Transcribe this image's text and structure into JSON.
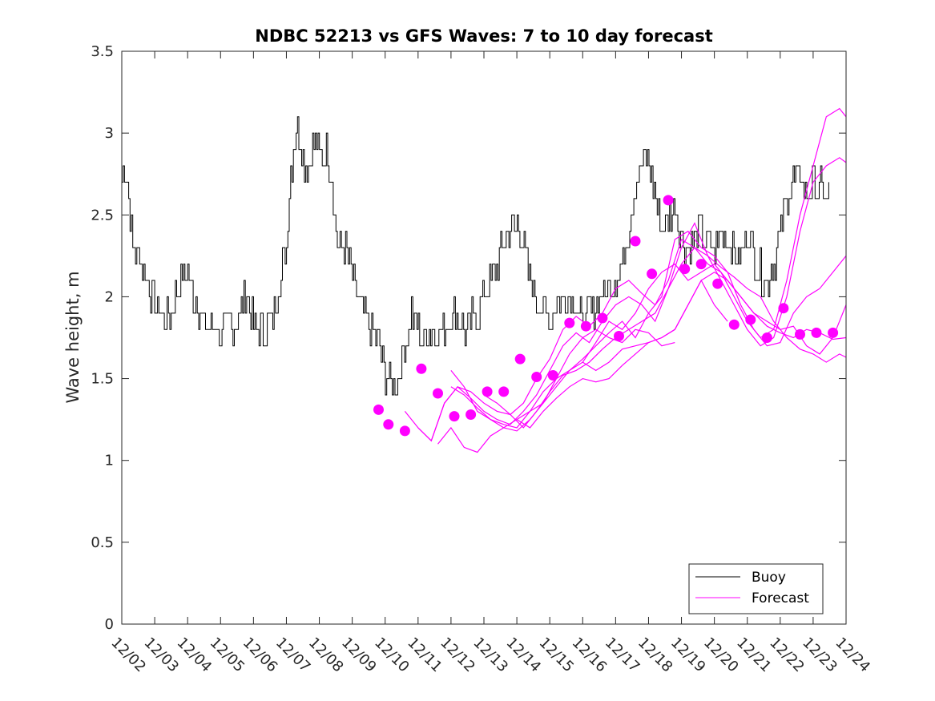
{
  "chart_data": {
    "type": "line",
    "title": "NDBC 52213 vs GFS Waves: 7 to 10 day forecast",
    "xlabel": "",
    "ylabel": "Wave height, m",
    "x_range_days": [
      0,
      22
    ],
    "ylim": [
      0,
      3.5
    ],
    "y_ticks": [
      0,
      0.5,
      1,
      1.5,
      2,
      2.5,
      3,
      3.5
    ],
    "y_tick_labels": [
      "0",
      "0.5",
      "1",
      "1.5",
      "2",
      "2.5",
      "3",
      "3.5"
    ],
    "x_ticks": [
      0,
      1,
      2,
      3,
      4,
      5,
      6,
      7,
      8,
      9,
      10,
      11,
      12,
      13,
      14,
      15,
      16,
      17,
      18,
      19,
      20,
      21,
      22
    ],
    "x_tick_labels": [
      "12/02",
      "12/03",
      "12/04",
      "12/05",
      "12/06",
      "12/07",
      "12/08",
      "12/09",
      "12/10",
      "12/11",
      "12/12",
      "12/13",
      "12/14",
      "12/15",
      "12/16",
      "12/17",
      "12/18",
      "12/19",
      "12/20",
      "12/21",
      "12/22",
      "12/23",
      "12/24"
    ],
    "grid": false,
    "legend": {
      "location": "bottom-right",
      "entries": [
        {
          "label": "Buoy",
          "color": "#000000"
        },
        {
          "label": "Forecast",
          "color": "#ff00ff"
        }
      ]
    },
    "colors": {
      "buoy": "#000000",
      "forecast": "#ff00ff"
    },
    "series": [
      {
        "name": "Buoy",
        "x": [
          0,
          0.1,
          0.2,
          0.3,
          0.4,
          0.5,
          0.6,
          0.75,
          0.9,
          1.0,
          1.2,
          1.4,
          1.6,
          1.8,
          2.0,
          2.2,
          2.4,
          2.6,
          2.8,
          3.0,
          3.2,
          3.4,
          3.6,
          3.8,
          4.0,
          4.2,
          4.4,
          4.6,
          4.8,
          4.9,
          5.0,
          5.1,
          5.2,
          5.35,
          5.5,
          5.65,
          5.8,
          5.95,
          6.1,
          6.25,
          6.4,
          6.5,
          6.6,
          6.8,
          7.0,
          7.2,
          7.4,
          7.6,
          7.8,
          8.0,
          8.2,
          8.4,
          8.6,
          8.8,
          9.0,
          9.2,
          9.4,
          9.6,
          9.8,
          10.0,
          10.2,
          10.4,
          10.6,
          10.8,
          11.0,
          11.2,
          11.4,
          11.6,
          11.8,
          12.0,
          12.2,
          12.4,
          12.6,
          12.8,
          13.0,
          13.2,
          13.4,
          13.6,
          13.8,
          14.0,
          14.2,
          14.4,
          14.6,
          14.8,
          15.0,
          15.2,
          15.4,
          15.6,
          15.8,
          16.0,
          16.2,
          16.4,
          16.6,
          16.8,
          17.0,
          17.2,
          17.4,
          17.6,
          17.8,
          18.0,
          18.2,
          18.4,
          18.6,
          18.8,
          19.0,
          19.2,
          19.4,
          19.6,
          19.8,
          20.0,
          20.2,
          20.4,
          20.6,
          20.8,
          21.0,
          21.2,
          21.4,
          21.5
        ],
        "values": [
          2.7,
          2.8,
          2.6,
          2.35,
          2.25,
          2.3,
          2.2,
          2.1,
          2.0,
          1.95,
          1.9,
          1.85,
          2.0,
          2.1,
          2.15,
          2.0,
          1.9,
          1.8,
          1.85,
          1.75,
          1.8,
          1.85,
          1.9,
          2.0,
          1.85,
          1.8,
          1.8,
          1.85,
          2.1,
          2.2,
          2.3,
          2.7,
          2.9,
          3.05,
          2.85,
          2.8,
          2.95,
          2.9,
          2.85,
          2.9,
          2.7,
          2.4,
          2.3,
          2.3,
          2.1,
          1.95,
          1.85,
          1.8,
          1.7,
          1.55,
          1.45,
          1.5,
          1.7,
          1.9,
          1.8,
          1.75,
          1.8,
          1.75,
          1.8,
          1.9,
          1.85,
          1.8,
          1.85,
          1.9,
          2.0,
          2.1,
          2.2,
          2.3,
          2.4,
          2.45,
          2.3,
          2.1,
          2.0,
          1.9,
          1.85,
          1.95,
          2.0,
          2.05,
          1.95,
          1.85,
          1.9,
          1.95,
          2.0,
          2.05,
          2.1,
          2.2,
          2.4,
          2.65,
          2.8,
          2.85,
          2.6,
          2.4,
          2.5,
          2.55,
          2.4,
          2.3,
          2.35,
          2.4,
          2.35,
          2.25,
          2.4,
          2.35,
          2.3,
          2.2,
          2.4,
          2.25,
          2.15,
          2.1,
          2.2,
          2.4,
          2.6,
          2.7,
          2.75,
          2.65,
          2.7,
          2.65,
          2.6,
          2.6
        ]
      },
      {
        "name": "Forecast",
        "lines": [
          {
            "x": [
              8.6,
              9.0,
              9.4,
              9.8,
              10.2,
              10.6,
              11.0,
              11.4,
              11.8,
              12.2,
              12.6,
              13.0,
              13.4,
              13.8,
              14.2,
              14.6,
              15.0,
              15.4,
              15.8,
              16.2,
              16.6,
              17.0,
              17.4,
              17.8,
              18.2,
              18.6,
              19.0,
              19.4,
              19.8,
              20.2,
              20.6,
              21.0,
              21.4,
              21.8,
              22.0
            ],
            "values": [
              1.3,
              1.2,
              1.12,
              1.35,
              1.45,
              1.42,
              1.35,
              1.3,
              1.28,
              1.35,
              1.5,
              1.62,
              1.8,
              1.88,
              1.82,
              1.9,
              2.05,
              2.1,
              2.02,
              1.95,
              2.1,
              2.35,
              2.3,
              2.2,
              2.15,
              2.0,
              1.85,
              1.75,
              1.8,
              2.1,
              2.5,
              2.8,
              3.1,
              3.15,
              3.1
            ]
          },
          {
            "x": [
              9.0,
              9.4,
              9.8,
              10.2,
              10.6,
              11.0,
              11.4,
              11.8,
              12.2,
              12.6,
              13.0,
              13.4,
              13.8,
              14.2,
              14.6,
              15.0,
              15.4,
              15.8,
              16.2,
              16.6,
              17.0,
              17.4,
              17.8,
              18.2,
              18.6,
              19.0,
              19.4,
              19.8,
              20.2,
              20.6,
              21.0,
              21.4,
              21.8,
              22.0
            ],
            "values": [
              1.2,
              1.12,
              1.35,
              1.45,
              1.38,
              1.3,
              1.25,
              1.22,
              1.3,
              1.4,
              1.55,
              1.7,
              1.78,
              1.72,
              1.85,
              1.95,
              2.0,
              1.95,
              1.85,
              2.05,
              2.3,
              2.45,
              2.25,
              2.1,
              1.95,
              1.8,
              1.7,
              1.75,
              2.0,
              2.4,
              2.7,
              2.8,
              2.85,
              2.82
            ]
          },
          {
            "x": [
              9.6,
              10.0,
              10.4,
              10.8,
              11.2,
              11.6,
              12.0,
              12.4,
              12.8,
              13.2,
              13.6,
              14.0,
              14.4,
              14.8,
              15.2,
              15.6,
              16.0,
              16.4,
              16.8,
              17.2,
              17.6,
              18.0,
              18.4,
              18.8,
              19.2,
              19.6,
              20.0,
              20.4,
              20.8,
              21.2,
              21.6,
              22.0
            ],
            "values": [
              1.1,
              1.2,
              1.08,
              1.05,
              1.15,
              1.2,
              1.25,
              1.3,
              1.35,
              1.45,
              1.55,
              1.62,
              1.7,
              1.78,
              1.85,
              1.75,
              1.9,
              2.0,
              2.35,
              2.4,
              2.3,
              2.25,
              2.15,
              1.95,
              1.8,
              1.7,
              1.72,
              1.9,
              2.0,
              2.05,
              2.15,
              2.25
            ]
          },
          {
            "x": [
              10.0,
              10.4,
              10.8,
              11.2,
              11.6,
              12.0,
              12.4,
              12.8,
              13.2,
              13.6,
              14.0,
              14.4,
              14.8,
              15.2,
              15.6,
              16.0,
              16.4,
              16.8,
              17.2,
              17.6,
              18.0,
              18.4,
              18.8,
              19.2,
              19.6,
              20.0,
              20.4,
              20.8,
              21.2,
              21.6,
              22.0
            ],
            "values": [
              1.45,
              1.4,
              1.32,
              1.25,
              1.22,
              1.2,
              1.3,
              1.42,
              1.5,
              1.55,
              1.6,
              1.72,
              1.85,
              1.8,
              1.9,
              2.05,
              2.15,
              2.2,
              2.1,
              2.15,
              2.2,
              2.1,
              2.0,
              1.9,
              1.85,
              1.8,
              1.82,
              1.7,
              1.65,
              1.75,
              1.95
            ]
          },
          {
            "x": [
              11.0,
              11.4,
              11.8,
              12.2,
              12.6,
              13.0,
              13.4,
              13.8,
              14.2,
              14.6,
              15.0,
              15.4,
              15.8,
              16.2,
              16.6,
              17.0,
              17.4,
              17.8,
              18.2,
              18.6,
              19.0,
              19.4,
              19.8,
              20.2,
              20.6,
              21.0,
              21.4,
              21.8,
              22.0
            ],
            "values": [
              1.4,
              1.35,
              1.28,
              1.2,
              1.3,
              1.42,
              1.52,
              1.55,
              1.6,
              1.68,
              1.75,
              1.8,
              1.85,
              1.9,
              2.05,
              2.2,
              2.3,
              2.25,
              2.18,
              2.12,
              2.05,
              2.0,
              1.85,
              1.75,
              1.68,
              1.65,
              1.6,
              1.65,
              1.63
            ]
          },
          {
            "x": [
              12.0,
              12.4,
              12.8,
              13.2,
              13.6,
              14.0,
              14.4,
              14.8,
              15.2,
              15.6,
              16.0,
              16.4,
              16.8,
              17.2,
              17.6,
              18.0,
              18.4,
              18.8,
              19.2,
              19.6,
              20.0,
              20.4,
              20.8,
              21.2,
              21.6,
              22.0
            ],
            "values": [
              1.25,
              1.2,
              1.3,
              1.38,
              1.45,
              1.5,
              1.48,
              1.5,
              1.58,
              1.65,
              1.72,
              1.75,
              1.8,
              1.95,
              2.1,
              2.15,
              2.1,
              2.0,
              1.9,
              1.82,
              1.78,
              1.75,
              1.8,
              1.78,
              1.74,
              1.75
            ]
          },
          {
            "x": [
              14.0,
              14.4,
              14.8,
              15.2,
              15.6,
              16.0,
              16.4,
              16.8,
              17.2,
              17.6,
              18.0,
              18.4
            ],
            "values": [
              1.6,
              1.55,
              1.6,
              1.68,
              1.7,
              1.72,
              1.75,
              1.8,
              1.95,
              2.1,
              1.95,
              1.85
            ]
          },
          {
            "x": [
              10.0,
              10.4,
              10.8,
              11.2,
              11.6,
              12.0,
              12.4,
              12.8,
              13.2,
              13.6,
              14.0,
              14.4,
              14.8,
              15.2,
              15.6,
              16.0,
              16.4,
              16.8
            ],
            "values": [
              1.55,
              1.45,
              1.3,
              1.25,
              1.2,
              1.18,
              1.25,
              1.35,
              1.5,
              1.65,
              1.75,
              1.8,
              1.75,
              1.72,
              1.8,
              1.78,
              1.7,
              1.72
            ]
          }
        ]
      },
      {
        "name": "Forecast points",
        "x": [
          7.8,
          8.1,
          8.6,
          9.1,
          9.6,
          10.1,
          10.6,
          11.1,
          11.6,
          12.1,
          12.6,
          13.1,
          13.6,
          14.1,
          14.6,
          15.1,
          15.6,
          16.1,
          16.6,
          17.1,
          17.6,
          18.1,
          18.6,
          19.1,
          19.6,
          20.1,
          20.6,
          21.1,
          21.6
        ],
        "values": [
          1.31,
          1.22,
          1.18,
          1.56,
          1.41,
          1.27,
          1.28,
          1.42,
          1.42,
          1.62,
          1.51,
          1.52,
          1.84,
          1.82,
          1.87,
          1.76,
          2.34,
          2.14,
          2.59,
          2.17,
          2.2,
          2.08,
          1.83,
          1.86,
          1.75,
          1.93,
          1.77,
          1.78,
          1.78
        ]
      }
    ]
  }
}
